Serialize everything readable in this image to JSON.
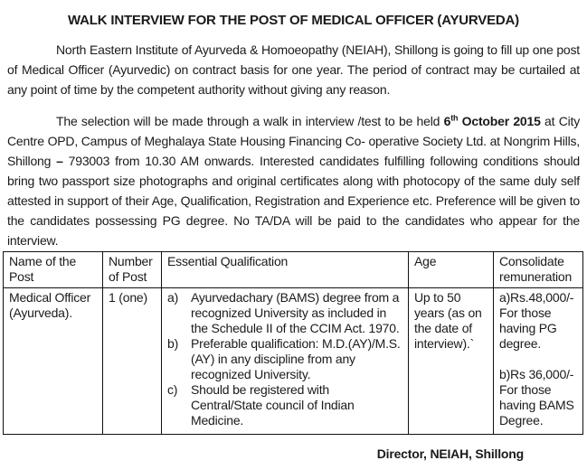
{
  "document": {
    "title": "WALK INTERVIEW FOR THE POST OF MEDICAL OFFICER (AYURVEDA)",
    "paragraph1": {
      "text": "North Eastern Institute of Ayurveda & Homoeopathy (NEIAH), Shillong is going to fill up one post of Medical Officer (Ayurvedic) on contract basis for one year. The period of contract may be curtailed at any point of time by the competent authority without giving any reason."
    },
    "paragraph2": {
      "segment_pre": "The selection will be made through a walk in interview /test to be held ",
      "bold_date_day": "6",
      "bold_date_sup": "th",
      "bold_date_rest": " October 2015",
      "segment_mid": " at City Centre OPD, Campus of Meghalaya State Housing Financing Co- operative Society Ltd. at Nongrim Hills, Shillong ",
      "bold_dash": "–",
      "segment_post": " 793003 from 10.30 AM onwards. Interested candidates fulfilling following conditions should bring two passport size photographs and original certificates along with photocopy of the same duly self attested in support of their Age, Qualification, Registration and Experience etc. Preference will be given to the candidates possessing PG degree. No TA/DA will be paid to the candidates who appear for the interview."
    },
    "table": {
      "headers": [
        "Name of the Post",
        "Number of Post",
        "Essential Qualification",
        "Age",
        "Consolidate remuneration"
      ],
      "row": {
        "post_name": "Medical Officer (Ayurveda).",
        "post_count": "1 (one)",
        "qualifications": [
          {
            "marker": "a)",
            "text": "Ayurvedachary (BAMS) degree from a recognized University as included in the Schedule II of the CCIM Act. 1970."
          },
          {
            "marker": "b)",
            "text": "Preferable qualification: M.D.(AY)/M.S.(AY) in any discipline from any recognized University."
          },
          {
            "marker": "c)",
            "text": "Should be registered with Central/State council of Indian Medicine."
          }
        ],
        "age": "Up to 50 years (as on the date of interview).`",
        "remuneration": [
          "a)Rs.48,000/- For those having PG degree.",
          "b)Rs 36,000/- For those having BAMS Degree."
        ]
      }
    },
    "signature": "Director, NEIAH, Shillong"
  },
  "colors": {
    "text": "#1a1a1a",
    "background": "#ffffff",
    "border": "#111111"
  }
}
